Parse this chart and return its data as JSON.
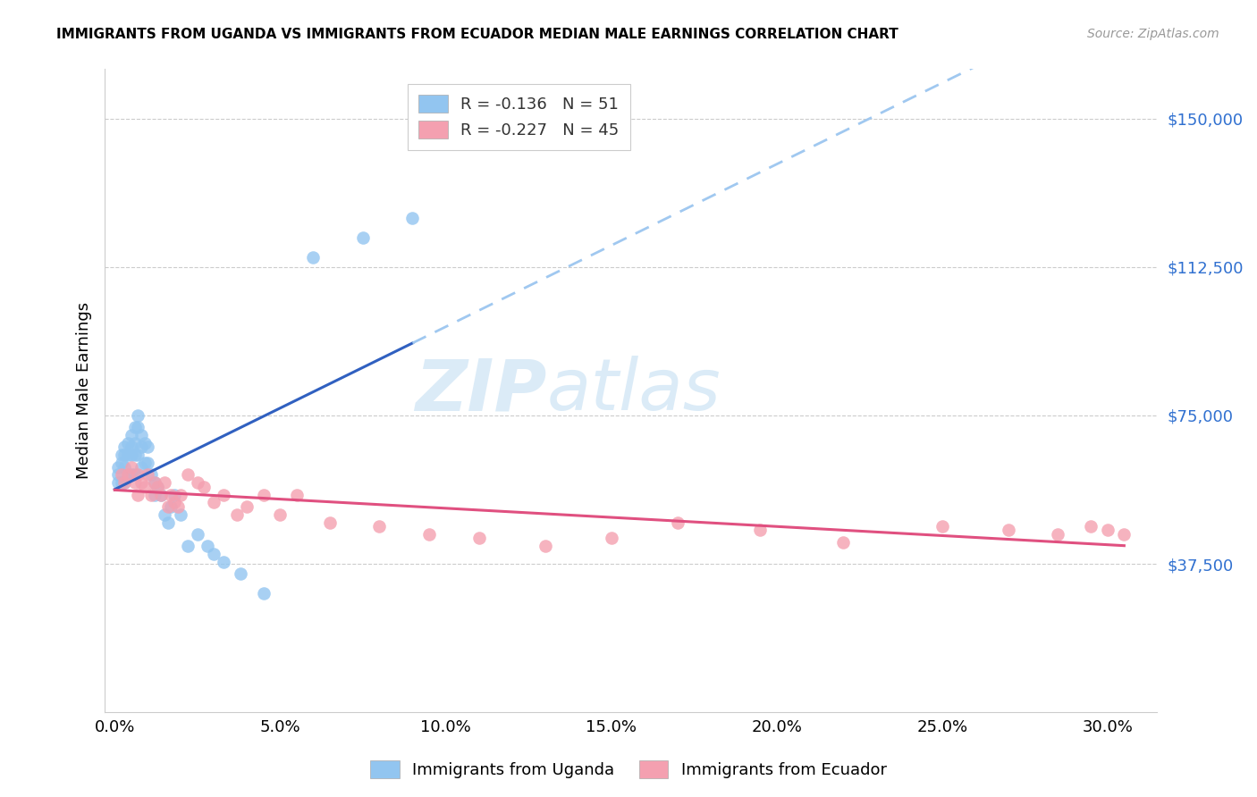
{
  "title": "IMMIGRANTS FROM UGANDA VS IMMIGRANTS FROM ECUADOR MEDIAN MALE EARNINGS CORRELATION CHART",
  "source": "Source: ZipAtlas.com",
  "ylabel": "Median Male Earnings",
  "xlabel_ticks": [
    "0.0%",
    "5.0%",
    "10.0%",
    "15.0%",
    "20.0%",
    "25.0%",
    "30.0%"
  ],
  "xlabel_vals": [
    0.0,
    0.05,
    0.1,
    0.15,
    0.2,
    0.25,
    0.3
  ],
  "ytick_labels": [
    "$37,500",
    "$75,000",
    "$112,500",
    "$150,000"
  ],
  "ytick_vals": [
    37500,
    75000,
    112500,
    150000
  ],
  "ylim": [
    0,
    162500
  ],
  "xlim": [
    -0.003,
    0.315
  ],
  "legend_r_uganda": "-0.136",
  "legend_n_uganda": "51",
  "legend_r_ecuador": "-0.227",
  "legend_n_ecuador": "45",
  "color_uganda": "#92C5F0",
  "color_ecuador": "#F4A0B0",
  "color_trendline_uganda_solid": "#3060C0",
  "color_trendline_ecuador_solid": "#E05080",
  "color_trendline_uganda_dashed": "#A0C8F0",
  "watermark_zip": "ZIP",
  "watermark_atlas": "atlas",
  "uganda_x": [
    0.001,
    0.001,
    0.001,
    0.002,
    0.002,
    0.002,
    0.003,
    0.003,
    0.003,
    0.003,
    0.004,
    0.004,
    0.004,
    0.005,
    0.005,
    0.005,
    0.005,
    0.006,
    0.006,
    0.006,
    0.006,
    0.007,
    0.007,
    0.007,
    0.008,
    0.008,
    0.008,
    0.009,
    0.009,
    0.01,
    0.01,
    0.011,
    0.012,
    0.012,
    0.013,
    0.014,
    0.015,
    0.016,
    0.017,
    0.018,
    0.02,
    0.022,
    0.025,
    0.028,
    0.03,
    0.033,
    0.038,
    0.045,
    0.06,
    0.075,
    0.09
  ],
  "uganda_y": [
    62000,
    60000,
    58000,
    65000,
    63000,
    58000,
    67000,
    65000,
    62000,
    58000,
    68000,
    65000,
    60000,
    70000,
    67000,
    65000,
    60000,
    72000,
    68000,
    65000,
    60000,
    75000,
    72000,
    65000,
    70000,
    67000,
    62000,
    68000,
    63000,
    67000,
    63000,
    60000,
    58000,
    55000,
    57000,
    55000,
    50000,
    48000,
    52000,
    55000,
    50000,
    42000,
    45000,
    42000,
    40000,
    38000,
    35000,
    30000,
    115000,
    120000,
    125000
  ],
  "ecuador_x": [
    0.002,
    0.003,
    0.004,
    0.005,
    0.006,
    0.007,
    0.007,
    0.008,
    0.009,
    0.01,
    0.011,
    0.012,
    0.013,
    0.014,
    0.015,
    0.016,
    0.017,
    0.018,
    0.019,
    0.02,
    0.022,
    0.025,
    0.027,
    0.03,
    0.033,
    0.037,
    0.04,
    0.045,
    0.05,
    0.055,
    0.065,
    0.08,
    0.095,
    0.11,
    0.13,
    0.15,
    0.17,
    0.195,
    0.22,
    0.25,
    0.27,
    0.285,
    0.295,
    0.3,
    0.305
  ],
  "ecuador_y": [
    60000,
    58000,
    60000,
    62000,
    58000,
    60000,
    55000,
    58000,
    57000,
    60000,
    55000,
    58000,
    57000,
    55000,
    58000,
    52000,
    55000,
    53000,
    52000,
    55000,
    60000,
    58000,
    57000,
    53000,
    55000,
    50000,
    52000,
    55000,
    50000,
    55000,
    48000,
    47000,
    45000,
    44000,
    42000,
    44000,
    48000,
    46000,
    43000,
    47000,
    46000,
    45000,
    47000,
    46000,
    45000
  ]
}
